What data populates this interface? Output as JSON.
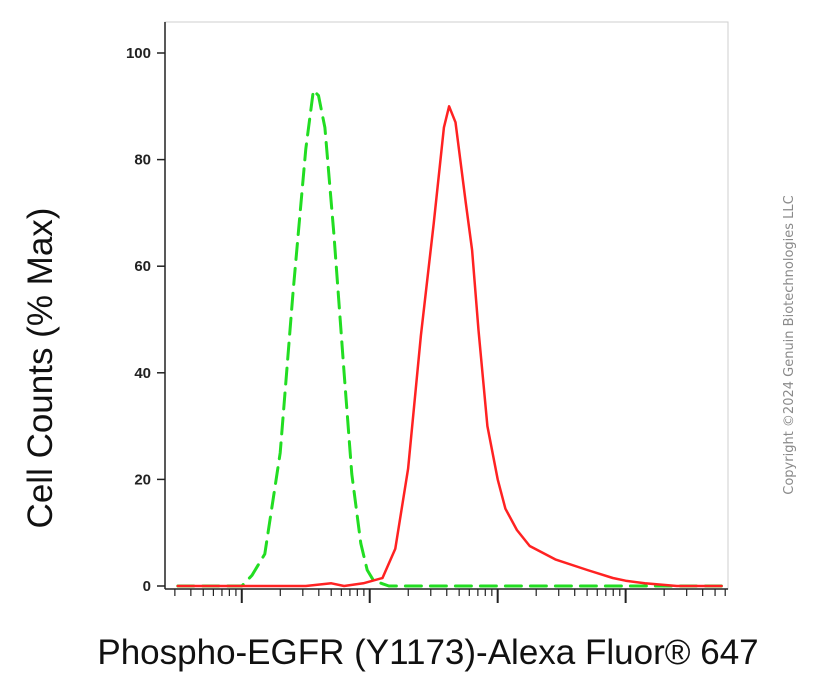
{
  "chart_data": {
    "type": "line",
    "title": "",
    "xlabel": "Phospho-EGFR (Y1173)-Alexa Fluor® 647",
    "ylabel": "Cell Counts (% Max)",
    "ylim": [
      0,
      100
    ],
    "y_ticks": [
      0,
      20,
      40,
      60,
      80,
      100
    ],
    "x_scale": "log",
    "xlim": [
      -0.6,
      3.8
    ],
    "x_tick_labels_shown": false,
    "grid": false,
    "legend": "none",
    "series": [
      {
        "color": "#22dd22",
        "style": "dashed",
        "x": [
          -0.5,
          0.0,
          0.08,
          0.18,
          0.3,
          0.4,
          0.5,
          0.56,
          0.6,
          0.65,
          0.72,
          0.8,
          0.86,
          0.93,
          0.98,
          1.03,
          1.09,
          1.15,
          1.3,
          1.6,
          2.0,
          2.5,
          3.0,
          3.5,
          3.75
        ],
        "y": [
          0,
          0,
          2,
          6,
          25,
          55,
          82,
          93,
          92,
          86,
          66,
          40,
          21,
          8,
          3,
          1,
          0.5,
          0,
          0,
          0,
          0,
          0,
          0,
          0,
          0
        ]
      },
      {
        "color": "#ff2222",
        "style": "solid",
        "x": [
          -0.5,
          0.0,
          0.5,
          0.7,
          0.8,
          0.95,
          1.1,
          1.2,
          1.3,
          1.4,
          1.5,
          1.58,
          1.62,
          1.67,
          1.75,
          1.8,
          1.85,
          1.92,
          2.0,
          2.06,
          2.15,
          2.25,
          2.45,
          2.7,
          2.9,
          3.0,
          3.15,
          3.4,
          3.75
        ],
        "y": [
          0,
          0,
          0,
          0.5,
          0,
          0.5,
          1.5,
          7,
          22,
          47,
          68,
          86,
          90,
          87,
          72,
          63,
          48,
          30,
          20,
          14.5,
          10.5,
          7.5,
          5,
          3,
          1.5,
          1,
          0.5,
          0,
          0
        ]
      }
    ]
  },
  "watermark": "Copyright ©2024 Genuin Biotechnologies LLC"
}
